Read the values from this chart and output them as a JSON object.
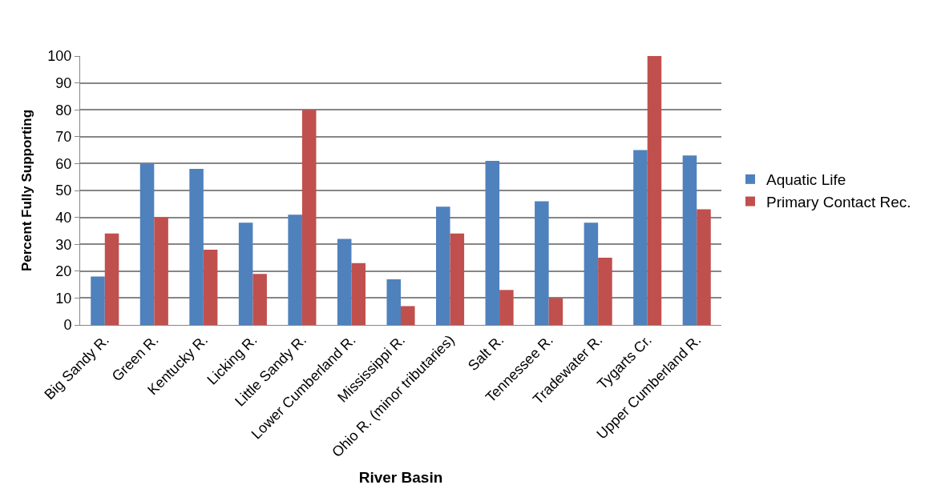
{
  "chart_data": {
    "type": "bar",
    "xlabel": "River Basin",
    "ylabel": "Percent Fully Supporting",
    "categories": [
      "Big Sandy R.",
      "Green R.",
      "Kentucky R.",
      "Licking R.",
      "Little Sandy R.",
      "Lower Cumberland R.",
      "Mississippi R.",
      "Ohio R. (minor tributaries)",
      "Salt R.",
      "Tennessee R.",
      "Tradewater R.",
      "Tygarts Cr.",
      "Upper Cumberland R."
    ],
    "series": [
      {
        "name": "Aquatic Life",
        "color": "#4f81bd",
        "values": [
          18,
          60,
          58,
          38,
          41,
          32,
          17,
          44,
          61,
          46,
          38,
          65,
          63
        ]
      },
      {
        "name": "Primary Contact Rec.",
        "color": "#c0504d",
        "values": [
          34,
          40,
          28,
          19,
          80,
          23,
          7,
          34,
          13,
          10,
          25,
          100,
          43
        ]
      }
    ],
    "ylim": [
      0,
      100
    ],
    "yticks": [
      0,
      10,
      20,
      30,
      40,
      50,
      60,
      70,
      80,
      90,
      100
    ],
    "grid": "y",
    "legend": "right"
  }
}
